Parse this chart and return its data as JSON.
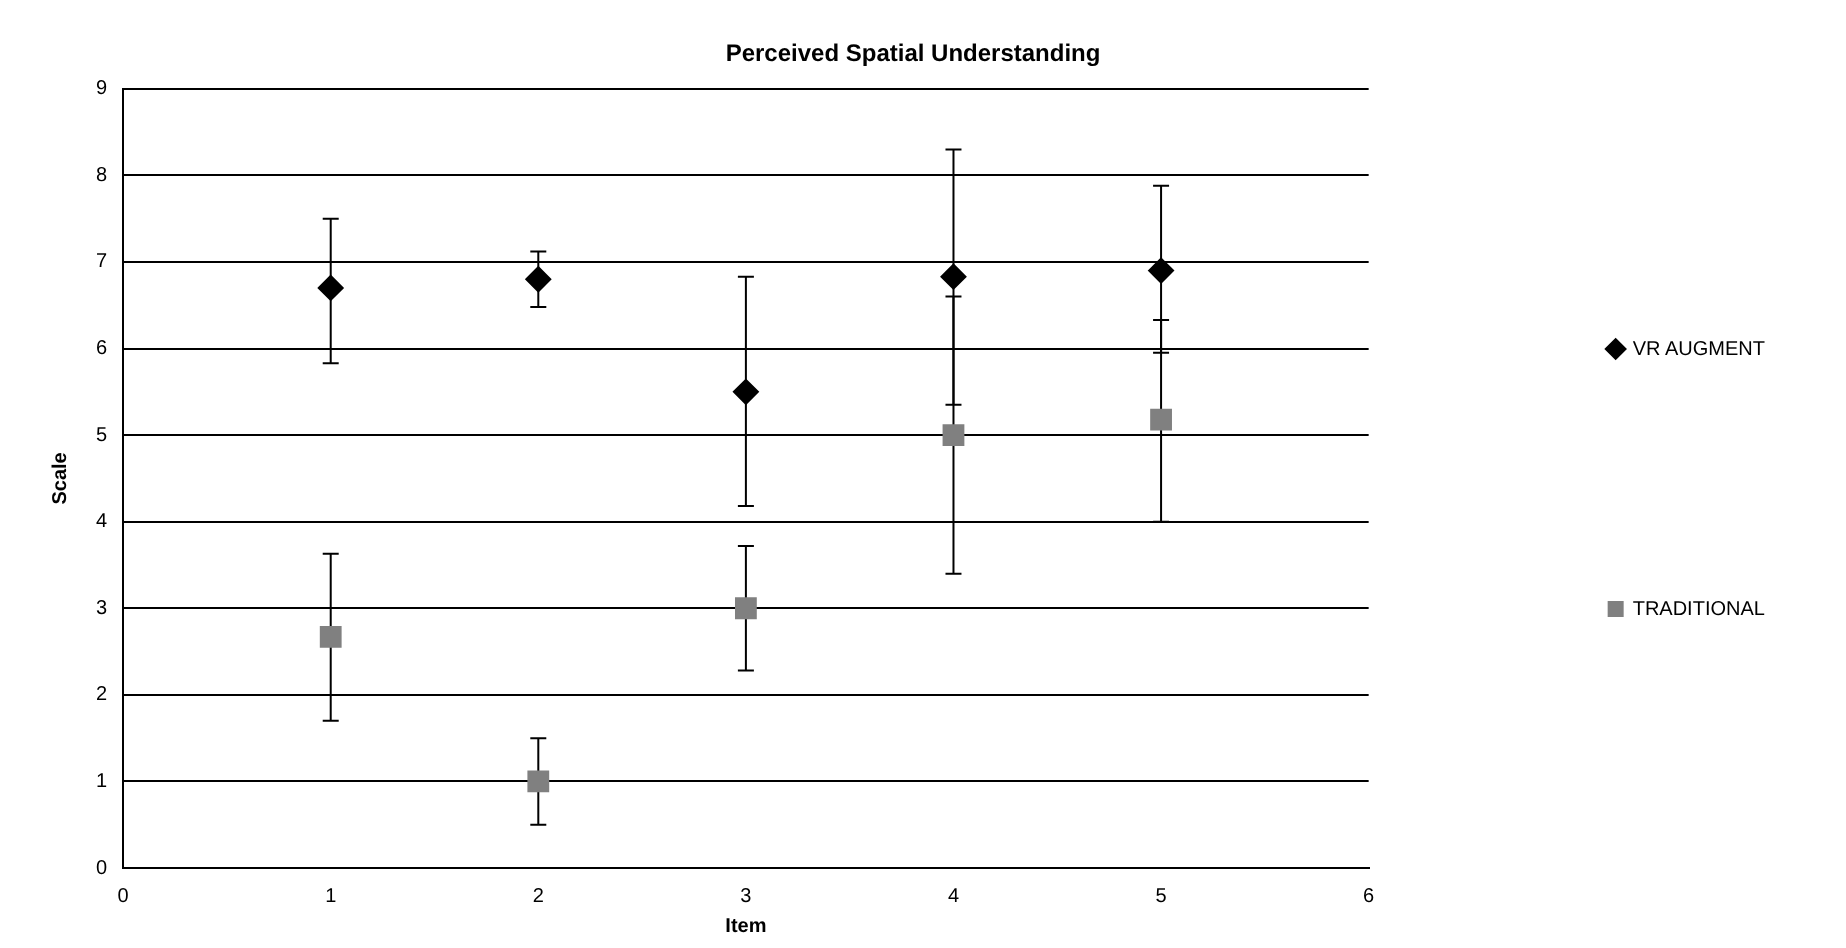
{
  "chart_data": {
    "type": "scatter",
    "title": "Perceived Spatial Understanding",
    "xlabel": "Item",
    "ylabel": "Scale",
    "xlim": [
      0,
      6
    ],
    "xticks": [
      0,
      1,
      2,
      3,
      4,
      5,
      6
    ],
    "ylim": [
      0,
      9
    ],
    "yticks": [
      0,
      1,
      2,
      3,
      4,
      5,
      6,
      7,
      8,
      9
    ],
    "grid": "y",
    "legend": "right",
    "series": [
      {
        "name": "VR AUGMENT",
        "color": "#000000",
        "marker": "diamond",
        "x": [
          1,
          2,
          3,
          4,
          5
        ],
        "values": [
          6.7,
          6.8,
          5.5,
          6.83,
          6.9
        ],
        "errors": [
          [
            5.83,
            7.5
          ],
          [
            6.48,
            7.12
          ],
          [
            4.18,
            6.83
          ],
          [
            5.35,
            8.3
          ],
          [
            5.95,
            7.88
          ]
        ]
      },
      {
        "name": "TRADITIONAL",
        "color": "#808080",
        "marker": "square",
        "x": [
          1,
          2,
          3,
          4,
          5
        ],
        "values": [
          2.67,
          1.0,
          3.0,
          5.0,
          5.18
        ],
        "errors": [
          [
            1.7,
            3.63
          ],
          [
            0.5,
            1.5
          ],
          [
            2.28,
            3.72
          ],
          [
            3.4,
            6.6
          ],
          [
            4.0,
            6.33
          ]
        ]
      }
    ]
  }
}
